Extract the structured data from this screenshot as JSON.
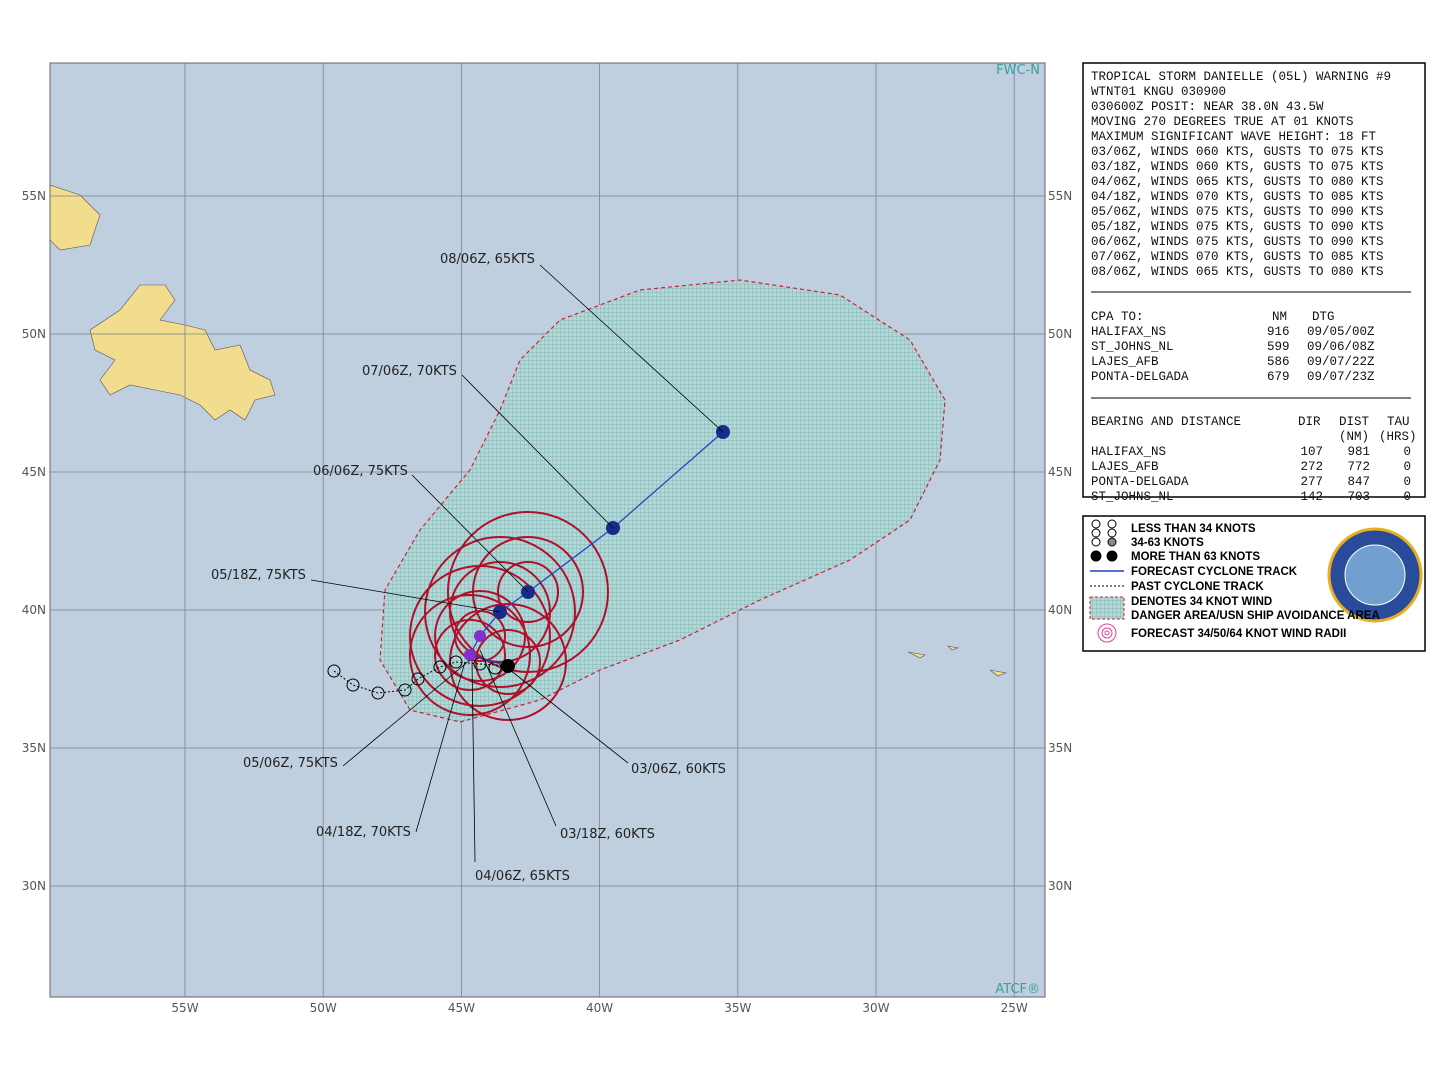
{
  "map": {
    "corner_labels": {
      "top_right": "FWC-N",
      "bottom_right": "ATCF®"
    },
    "lat_labels": [
      "55N",
      "50N",
      "45N",
      "40N",
      "35N",
      "30N"
    ],
    "lon_labels": [
      "55W",
      "50W",
      "45W",
      "40W",
      "35W",
      "30W",
      "25W"
    ],
    "forecast_labels": [
      "08/06Z, 65KTS",
      "07/06Z, 70KTS",
      "06/06Z, 75KTS",
      "05/18Z, 75KTS",
      "05/06Z, 75KTS",
      "04/18Z, 70KTS",
      "04/06Z, 65KTS",
      "03/18Z, 60KTS",
      "03/06Z, 60KTS"
    ]
  },
  "warning": {
    "lines": [
      "TROPICAL STORM DANIELLE (05L) WARNING #9",
      "WTNT01 KNGU 030900",
      "030600Z POSIT: NEAR 38.0N 43.5W",
      "MOVING 270 DEGREES TRUE AT 01 KNOTS",
      "MAXIMUM SIGNIFICANT WAVE HEIGHT: 18 FT",
      "03/06Z, WINDS 060 KTS, GUSTS TO 075 KTS",
      "03/18Z, WINDS 060 KTS, GUSTS TO 075 KTS",
      "04/06Z, WINDS 065 KTS, GUSTS TO 080 KTS",
      "04/18Z, WINDS 070 KTS, GUSTS TO 085 KTS",
      "05/06Z, WINDS 075 KTS, GUSTS TO 090 KTS",
      "05/18Z, WINDS 075 KTS, GUSTS TO 090 KTS",
      "06/06Z, WINDS 075 KTS, GUSTS TO 090 KTS",
      "07/06Z, WINDS 070 KTS, GUSTS TO 085 KTS",
      "08/06Z, WINDS 065 KTS, GUSTS TO 080 KTS"
    ]
  },
  "cpa": {
    "header": [
      "CPA TO:",
      "NM",
      "DTG"
    ],
    "rows": [
      [
        "HALIFAX_NS",
        "916",
        "09/05/00Z"
      ],
      [
        "ST_JOHNS_NL",
        "599",
        "09/06/08Z"
      ],
      [
        "LAJES_AFB",
        "586",
        "09/07/22Z"
      ],
      [
        "PONTA-DELGADA",
        "679",
        "09/07/23Z"
      ]
    ]
  },
  "bearing": {
    "header": [
      "BEARING AND DISTANCE",
      "DIR",
      "DIST",
      "TAU"
    ],
    "subheader": [
      "(NM)",
      "(HRS)"
    ],
    "rows": [
      [
        "HALIFAX_NS",
        "107",
        "981",
        "0"
      ],
      [
        "LAJES_AFB",
        "272",
        "772",
        "0"
      ],
      [
        "PONTA-DELGADA",
        "277",
        "847",
        "0"
      ],
      [
        "ST_JOHNS_NL",
        "142",
        "703",
        "0"
      ]
    ]
  },
  "legend": [
    "LESS THAN 34 KNOTS",
    "34-63 KNOTS",
    "MORE THAN 63 KNOTS",
    "FORECAST CYCLONE TRACK",
    "PAST CYCLONE TRACK",
    "DENOTES 34 KNOT WIND",
    "DANGER AREA/USN SHIP AVOIDANCE AREA",
    "FORECAST 34/50/64 KNOT WIND RADII"
  ]
}
